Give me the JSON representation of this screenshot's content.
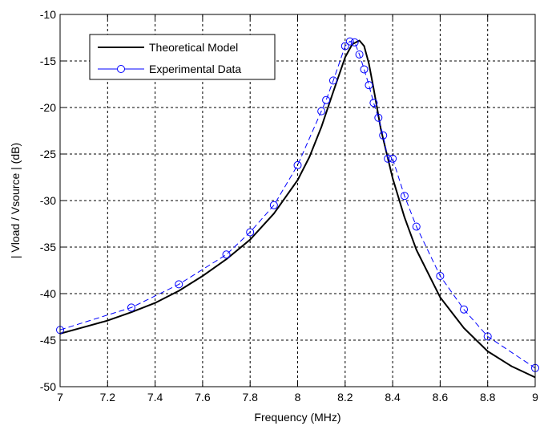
{
  "chart_data": {
    "type": "line",
    "title": "",
    "xlabel": "Frequency (MHz)",
    "ylabel": "| Vload / Vsource | (dB)",
    "xlim": [
      7,
      9
    ],
    "ylim": [
      -50,
      -10
    ],
    "xticks": [
      7,
      7.2,
      7.4,
      7.6,
      7.8,
      8,
      8.2,
      8.4,
      8.6,
      8.8,
      9
    ],
    "yticks": [
      -10,
      -15,
      -20,
      -25,
      -30,
      -35,
      -40,
      -45,
      -50
    ],
    "xtick_labels": [
      "7",
      "7.2",
      "7.4",
      "7.6",
      "7.8",
      "8",
      "8.2",
      "8.4",
      "8.6",
      "8.8",
      "9"
    ],
    "ytick_labels": [
      "-10",
      "-15",
      "-20",
      "-25",
      "-30",
      "-35",
      "-40",
      "-45",
      "-50"
    ],
    "grid": true,
    "legend_position": "top-left",
    "series": [
      {
        "name": "Theoretical Model",
        "color": "#000000",
        "style": "solid",
        "marker": "none",
        "x": [
          7.0,
          7.1,
          7.2,
          7.3,
          7.4,
          7.5,
          7.6,
          7.7,
          7.8,
          7.9,
          8.0,
          8.05,
          8.1,
          8.15,
          8.2,
          8.23,
          8.26,
          8.28,
          8.3,
          8.32,
          8.35,
          8.4,
          8.45,
          8.5,
          8.6,
          8.7,
          8.8,
          8.9,
          9.0
        ],
        "y": [
          -44.3,
          -43.6,
          -42.9,
          -42.0,
          -41.0,
          -39.7,
          -38.1,
          -36.3,
          -34.2,
          -31.4,
          -27.8,
          -25.3,
          -22.1,
          -18.3,
          -14.6,
          -13.2,
          -12.8,
          -13.4,
          -15.3,
          -18.0,
          -22.3,
          -27.6,
          -31.8,
          -35.3,
          -40.4,
          -43.7,
          -46.2,
          -47.8,
          -49.0
        ]
      },
      {
        "name": "Experimental Data",
        "color": "#0000ff",
        "style": "dashed",
        "marker": "circle",
        "x": [
          7.0,
          7.3,
          7.5,
          7.7,
          7.8,
          7.9,
          8.0,
          8.1,
          8.12,
          8.15,
          8.2,
          8.22,
          8.24,
          8.26,
          8.28,
          8.3,
          8.32,
          8.34,
          8.36,
          8.38,
          8.4,
          8.45,
          8.5,
          8.6,
          8.7,
          8.8,
          9.0
        ],
        "y": [
          -43.9,
          -41.5,
          -39.0,
          -35.8,
          -33.4,
          -30.5,
          -26.2,
          -20.4,
          -19.2,
          -17.1,
          -13.4,
          -12.9,
          -13.0,
          -14.3,
          -15.9,
          -17.6,
          -19.5,
          -21.1,
          -23.0,
          -25.5,
          -25.5,
          -29.5,
          -32.8,
          -38.1,
          -41.7,
          -44.6,
          -48.0
        ]
      }
    ]
  }
}
